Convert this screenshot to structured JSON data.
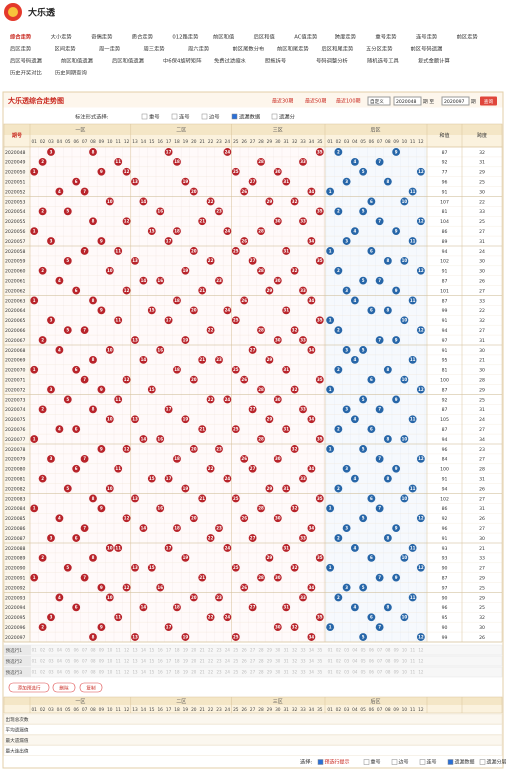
{
  "header": {
    "title": "大乐透"
  },
  "nav": [
    [
      "综合走势",
      "大小走势",
      "奇偶走势",
      "质合走势",
      "012路走势",
      "前区和值",
      "后区和值",
      "AC值走势",
      "跨度走势",
      "重号走势",
      "连号走势",
      "前区走势"
    ],
    [
      "后区走势",
      "区间走势",
      "周一走势",
      "周三走势",
      "周六走势",
      "前区尾数分布",
      "前区和尾走势",
      "后区和尾走势",
      "五分区走势",
      "前区号码遗漏"
    ],
    [
      "后区号码遗漏",
      "前区和值遗漏",
      "后区和值遗漏",
      "中6保4旋转矩阵",
      "免费过滤缩水",
      "胆拖拆号",
      "号码调整分析",
      "随机选号工具",
      "复式金额计算"
    ],
    [
      "历史开奖对比",
      "历史同期查询"
    ]
  ],
  "panel": {
    "title": "大乐透综合走势图",
    "periods": [
      "最近30期",
      "最近50期",
      "最近100期"
    ],
    "select": "自定义",
    "from": "2020048",
    "from_suffix": "期 至",
    "to": "2020097",
    "to_suffix": "期",
    "query": "查询",
    "mark_label": "标注形式选择:",
    "marks": [
      "重号",
      "连号",
      "边号",
      "遗漏数据",
      "遗漏分"
    ],
    "marks_checked": [
      false,
      false,
      false,
      true,
      false
    ]
  },
  "table": {
    "issue_header": "期号",
    "zones": [
      "一区",
      "二区",
      "三区",
      "后区"
    ],
    "front_numbers": [
      "01",
      "02",
      "03",
      "04",
      "05",
      "06",
      "07",
      "08",
      "09",
      "10",
      "11",
      "12",
      "13",
      "14",
      "15",
      "16",
      "17",
      "18",
      "19",
      "20",
      "21",
      "22",
      "23",
      "24",
      "25",
      "26",
      "27",
      "28",
      "29",
      "30",
      "31",
      "32",
      "33",
      "34",
      "35"
    ],
    "back_numbers": [
      "01",
      "02",
      "03",
      "04",
      "05",
      "06",
      "07",
      "08",
      "09",
      "10",
      "11",
      "12"
    ],
    "sum_header": "和值",
    "span_header": "跨度",
    "rows": [
      [
        "2020048",
        [
          3,
          8,
          17,
          24,
          35
        ],
        [
          2,
          9
        ],
        87,
        32
      ],
      [
        "2020049",
        [
          2,
          11,
          18,
          28,
          33
        ],
        [
          4,
          7
        ],
        92,
        31
      ],
      [
        "2020050",
        [
          1,
          9,
          12,
          25,
          30
        ],
        [
          5,
          12
        ],
        77,
        29
      ],
      [
        "2020051",
        [
          6,
          13,
          19,
          27,
          31
        ],
        [
          3,
          8
        ],
        96,
        25
      ],
      [
        "2020052",
        [
          4,
          7,
          20,
          26,
          34
        ],
        [
          1,
          11
        ],
        91,
        30
      ],
      [
        "2020053",
        [
          10,
          14,
          22,
          29,
          32
        ],
        [
          6,
          10
        ],
        107,
        22
      ],
      [
        "2020054",
        [
          2,
          5,
          16,
          23,
          35
        ],
        [
          2,
          5
        ],
        81,
        33
      ],
      [
        "2020055",
        [
          8,
          12,
          21,
          30,
          33
        ],
        [
          7,
          12
        ],
        104,
        25
      ],
      [
        "2020056",
        [
          1,
          15,
          18,
          24,
          28
        ],
        [
          4,
          9
        ],
        86,
        27
      ],
      [
        "2020057",
        [
          3,
          9,
          17,
          26,
          34
        ],
        [
          3,
          11
        ],
        89,
        31
      ],
      [
        "2020058",
        [
          7,
          11,
          20,
          25,
          31
        ],
        [
          1,
          6
        ],
        94,
        24
      ],
      [
        "2020059",
        [
          5,
          13,
          22,
          27,
          35
        ],
        [
          8,
          10
        ],
        102,
        30
      ],
      [
        "2020060",
        [
          2,
          10,
          19,
          28,
          32
        ],
        [
          2,
          12
        ],
        91,
        30
      ],
      [
        "2020061",
        [
          4,
          14,
          16,
          23,
          30
        ],
        [
          5,
          7
        ],
        87,
        26
      ],
      [
        "2020062",
        [
          6,
          12,
          21,
          29,
          33
        ],
        [
          3,
          9
        ],
        101,
        27
      ],
      [
        "2020063",
        [
          1,
          8,
          18,
          26,
          34
        ],
        [
          4,
          11
        ],
        87,
        33
      ],
      [
        "2020064",
        [
          9,
          15,
          20,
          24,
          31
        ],
        [
          6,
          8
        ],
        99,
        22
      ],
      [
        "2020065",
        [
          3,
          11,
          17,
          25,
          35
        ],
        [
          1,
          10
        ],
        91,
        32
      ],
      [
        "2020066",
        [
          5,
          7,
          22,
          28,
          32
        ],
        [
          2,
          12
        ],
        94,
        27
      ],
      [
        "2020067",
        [
          2,
          13,
          19,
          30,
          33
        ],
        [
          7,
          9
        ],
        97,
        31
      ],
      [
        "2020068",
        [
          4,
          10,
          16,
          27,
          34
        ],
        [
          3,
          5
        ],
        91,
        30
      ],
      [
        "2020069",
        [
          8,
          14,
          21,
          23,
          29
        ],
        [
          4,
          11
        ],
        95,
        21
      ],
      [
        "2020070",
        [
          1,
          6,
          18,
          25,
          31
        ],
        [
          2,
          8
        ],
        81,
        30
      ],
      [
        "2020071",
        [
          7,
          12,
          20,
          26,
          35
        ],
        [
          6,
          10
        ],
        100,
        28
      ],
      [
        "2020072",
        [
          3,
          9,
          15,
          28,
          32
        ],
        [
          1,
          12
        ],
        87,
        29
      ],
      [
        "2020073",
        [
          5,
          11,
          22,
          24,
          30
        ],
        [
          5,
          9
        ],
        92,
        25
      ],
      [
        "2020074",
        [
          2,
          8,
          17,
          27,
          33
        ],
        [
          3,
          7
        ],
        87,
        31
      ],
      [
        "2020075",
        [
          10,
          13,
          19,
          29,
          34
        ],
        [
          4,
          11
        ],
        105,
        24
      ],
      [
        "2020076",
        [
          4,
          6,
          21,
          25,
          31
        ],
        [
          2,
          6
        ],
        87,
        27
      ],
      [
        "2020077",
        [
          1,
          14,
          16,
          28,
          35
        ],
        [
          8,
          10
        ],
        94,
        34
      ],
      [
        "2020078",
        [
          9,
          12,
          20,
          23,
          32
        ],
        [
          1,
          5
        ],
        96,
        23
      ],
      [
        "2020079",
        [
          3,
          7,
          18,
          26,
          30
        ],
        [
          7,
          12
        ],
        84,
        27
      ],
      [
        "2020080",
        [
          6,
          11,
          22,
          27,
          34
        ],
        [
          3,
          9
        ],
        100,
        28
      ],
      [
        "2020081",
        [
          2,
          15,
          17,
          24,
          33
        ],
        [
          4,
          8
        ],
        91,
        31
      ],
      [
        "2020082",
        [
          5,
          10,
          19,
          29,
          31
        ],
        [
          2,
          11
        ],
        94,
        26
      ],
      [
        "2020083",
        [
          8,
          13,
          21,
          25,
          35
        ],
        [
          6,
          10
        ],
        102,
        27
      ],
      [
        "2020084",
        [
          1,
          9,
          16,
          28,
          32
        ],
        [
          1,
          7
        ],
        86,
        31
      ],
      [
        "2020085",
        [
          4,
          12,
          20,
          26,
          30
        ],
        [
          5,
          12
        ],
        92,
        26
      ],
      [
        "2020086",
        [
          7,
          14,
          18,
          23,
          34
        ],
        [
          3,
          9
        ],
        96,
        27
      ],
      [
        "2020087",
        [
          3,
          6,
          22,
          27,
          33
        ],
        [
          2,
          8
        ],
        91,
        30
      ],
      [
        "2020088",
        [
          10,
          11,
          17,
          24,
          31
        ],
        [
          4,
          11
        ],
        93,
        21
      ],
      [
        "2020089",
        [
          2,
          8,
          19,
          29,
          35
        ],
        [
          6,
          10
        ],
        93,
        33
      ],
      [
        "2020090",
        [
          5,
          13,
          15,
          25,
          32
        ],
        [
          1,
          12
        ],
        90,
        27
      ],
      [
        "2020091",
        [
          1,
          7,
          21,
          28,
          30
        ],
        [
          7,
          9
        ],
        87,
        29
      ],
      [
        "2020092",
        [
          9,
          12,
          16,
          26,
          34
        ],
        [
          3,
          5
        ],
        97,
        25
      ],
      [
        "2020093",
        [
          4,
          10,
          20,
          23,
          33
        ],
        [
          2,
          11
        ],
        90,
        29
      ],
      [
        "2020094",
        [
          6,
          14,
          18,
          27,
          31
        ],
        [
          4,
          8
        ],
        96,
        25
      ],
      [
        "2020095",
        [
          3,
          11,
          22,
          24,
          35
        ],
        [
          6,
          10
        ],
        95,
        32
      ],
      [
        "2020096",
        [
          2,
          9,
          17,
          30,
          32
        ],
        [
          1,
          7
        ],
        90,
        30
      ],
      [
        "2020097",
        [
          8,
          13,
          19,
          25,
          34
        ],
        [
          5,
          12
        ],
        99,
        26
      ]
    ],
    "preselect": [
      "预选行1",
      "预选行2",
      "预选行3"
    ],
    "buttons": [
      "添加预选行",
      "删除",
      "复制"
    ],
    "stats": [
      "出现总次数",
      "平均遗漏值",
      "最大遗漏值",
      "最大连出值"
    ]
  },
  "footer": {
    "label": "选择:",
    "options": [
      "预选行提示",
      "重号",
      "边号",
      "连号",
      "遗漏数据",
      "遗漏分层"
    ],
    "options_checked": [
      true,
      false,
      false,
      false,
      true,
      false
    ]
  }
}
